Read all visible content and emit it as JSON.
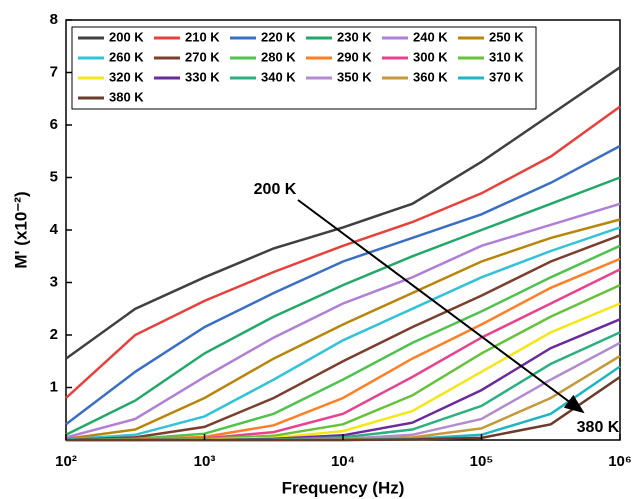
{
  "chart_data": {
    "type": "line",
    "x_label": "Frequency (Hz)",
    "y_label": "M' (x10⁻²)",
    "log_x": true,
    "x": [
      100,
      316,
      1000,
      3162,
      10000,
      31623,
      100000,
      316228,
      1000000
    ],
    "xlim": [
      100,
      1000000
    ],
    "xticks": [
      {
        "value": 100,
        "label": "10²"
      },
      {
        "value": 1000,
        "label": "10³"
      },
      {
        "value": 10000,
        "label": "10⁴"
      },
      {
        "value": 100000,
        "label": "10⁵"
      },
      {
        "value": 1000000,
        "label": "10⁶"
      }
    ],
    "ylim": [
      0,
      8
    ],
    "yticks": [
      1,
      2,
      3,
      4,
      5,
      6,
      7,
      8
    ],
    "legend": "top-left",
    "annotations": [
      "200 K",
      "380 K"
    ],
    "series": [
      {
        "name": "200 K",
        "color": "#404040",
        "values": [
          1.55,
          2.5,
          3.1,
          3.65,
          4.05,
          4.5,
          5.3,
          6.2,
          7.1
        ]
      },
      {
        "name": "210 K",
        "color": "#e8413c",
        "values": [
          0.8,
          2.0,
          2.65,
          3.2,
          3.7,
          4.15,
          4.7,
          5.4,
          6.35
        ]
      },
      {
        "name": "220 K",
        "color": "#3a6fc4",
        "values": [
          0.3,
          1.3,
          2.15,
          2.8,
          3.4,
          3.85,
          4.3,
          4.9,
          5.6
        ]
      },
      {
        "name": "230 K",
        "color": "#22a96a",
        "values": [
          0.1,
          0.75,
          1.65,
          2.35,
          2.95,
          3.5,
          4.0,
          4.5,
          5.0
        ]
      },
      {
        "name": "240 K",
        "color": "#b07fd6",
        "values": [
          0.05,
          0.4,
          1.2,
          1.95,
          2.6,
          3.1,
          3.7,
          4.1,
          4.5
        ]
      },
      {
        "name": "250 K",
        "color": "#b8860b",
        "values": [
          0.02,
          0.2,
          0.8,
          1.55,
          2.2,
          2.8,
          3.4,
          3.85,
          4.2
        ]
      },
      {
        "name": "260 K",
        "color": "#33c3d6",
        "values": [
          0.01,
          0.1,
          0.45,
          1.15,
          1.9,
          2.5,
          3.1,
          3.6,
          4.05
        ]
      },
      {
        "name": "270 K",
        "color": "#7b3f2e",
        "values": [
          0,
          0.05,
          0.25,
          0.8,
          1.5,
          2.15,
          2.75,
          3.4,
          3.9
        ]
      },
      {
        "name": "280 K",
        "color": "#4fc24f",
        "values": [
          0,
          0.02,
          0.12,
          0.5,
          1.15,
          1.85,
          2.45,
          3.1,
          3.7
        ]
      },
      {
        "name": "290 K",
        "color": "#ff7f27",
        "values": [
          0,
          0.01,
          0.06,
          0.28,
          0.8,
          1.55,
          2.2,
          2.9,
          3.45
        ]
      },
      {
        "name": "300 K",
        "color": "#e8428f",
        "values": [
          0,
          0,
          0.03,
          0.15,
          0.5,
          1.2,
          1.95,
          2.6,
          3.25
        ]
      },
      {
        "name": "310 K",
        "color": "#66c23a",
        "values": [
          0,
          0,
          0.02,
          0.08,
          0.3,
          0.85,
          1.65,
          2.35,
          2.95
        ]
      },
      {
        "name": "320 K",
        "color": "#f5e616",
        "values": [
          0,
          0,
          0.01,
          0.04,
          0.17,
          0.55,
          1.3,
          2.05,
          2.6
        ]
      },
      {
        "name": "330 K",
        "color": "#6a2b9c",
        "values": [
          0,
          0,
          0,
          0.02,
          0.09,
          0.33,
          0.95,
          1.75,
          2.3
        ]
      },
      {
        "name": "340 K",
        "color": "#2bb07f",
        "values": [
          0,
          0,
          0,
          0.01,
          0.05,
          0.2,
          0.65,
          1.45,
          2.05
        ]
      },
      {
        "name": "350 K",
        "color": "#b38ccf",
        "values": [
          0,
          0,
          0,
          0,
          0.02,
          0.1,
          0.4,
          1.15,
          1.85
        ]
      },
      {
        "name": "360 K",
        "color": "#c49a3a",
        "values": [
          0,
          0,
          0,
          0,
          0.01,
          0.05,
          0.22,
          0.8,
          1.6
        ]
      },
      {
        "name": "370 K",
        "color": "#20b5c4",
        "values": [
          0,
          0,
          0,
          0,
          0,
          0.02,
          0.1,
          0.5,
          1.4
        ]
      },
      {
        "name": "380 K",
        "color": "#6b3b2b",
        "values": [
          0,
          0,
          0,
          0,
          0,
          0.01,
          0.04,
          0.3,
          1.2
        ]
      }
    ]
  }
}
